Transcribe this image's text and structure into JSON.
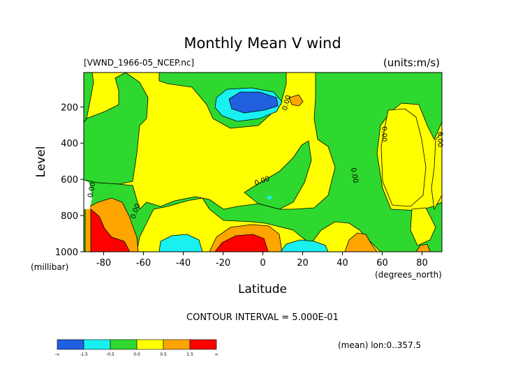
{
  "chart_data": {
    "type": "heatmap",
    "title": "Monthly Mean V wind",
    "dataset_label": "[VWND_1966-05_NCEP.nc]",
    "units_label": "(units:m/s)",
    "ylabel": "Level",
    "ylabel_units": "(millibar)",
    "xlabel": "Latitude",
    "xlabel_units": "(degrees_north)",
    "x_ticks": [
      -80,
      -60,
      -40,
      -20,
      0,
      20,
      40,
      60,
      80
    ],
    "x_tick_labels": [
      "-80",
      "-60",
      "-40",
      "-20",
      "0",
      "20",
      "40",
      "60",
      "80"
    ],
    "xlim": [
      -90,
      90
    ],
    "y_ticks": [
      200,
      400,
      600,
      800,
      1000
    ],
    "y_tick_labels": [
      "200",
      "400",
      "600",
      "800",
      "1000"
    ],
    "ylim": [
      1000,
      10
    ],
    "contour_interval_text": "CONTOUR INTERVAL = 5.000E-01",
    "footer_note": "(mean) lon:0..357.5",
    "contour_labels": [
      {
        "text": "0.00",
        "lat": -85,
        "level": 660,
        "angle": -80
      },
      {
        "text": "0.00",
        "lat": -63,
        "level": 780,
        "angle": -70
      },
      {
        "text": "0.00",
        "lat": 13,
        "level": 180,
        "angle": -75
      },
      {
        "text": "0.00",
        "lat": 0,
        "level": 620,
        "angle": -20
      },
      {
        "text": "0.00",
        "lat": 45,
        "level": 580,
        "angle": 80
      },
      {
        "text": "0.00",
        "lat": 60,
        "level": 350,
        "angle": 90
      },
      {
        "text": "0.00",
        "lat": 88,
        "level": 380,
        "angle": 90
      }
    ],
    "colorbar": {
      "colors": [
        "#1f5fe0",
        "#19f0f0",
        "#2ed82e",
        "#ffff00",
        "#ffa500",
        "#ff0000"
      ],
      "labels": [
        "-∞",
        "-1.5",
        "-0.5",
        "0.0",
        "0.5",
        "1.5",
        "∞"
      ]
    },
    "regions": [
      {
        "level_band": "green",
        "lat": [
          -90,
          -88
        ],
        "level": [
          60,
          200
        ]
      },
      {
        "level_band": "green",
        "lat": [
          -60,
          -47
        ],
        "level": [
          60,
          300
        ]
      },
      {
        "level_band": "green",
        "lat": [
          -28,
          12
        ],
        "level": [
          60,
          290
        ]
      },
      {
        "level_band": "cyan",
        "lat": [
          -24,
          11
        ],
        "level": [
          100,
          240
        ]
      },
      {
        "level_band": "blue",
        "lat": [
          -17,
          5
        ],
        "level": [
          120,
          210
        ]
      },
      {
        "level_band": "orange",
        "lat": [
          14,
          20
        ],
        "level": [
          140,
          200
        ]
      },
      {
        "level_band": "green",
        "lat": [
          25,
          87
        ],
        "level": [
          80,
          1000
        ]
      },
      {
        "level_band": "orange",
        "lat": [
          -88,
          -58
        ],
        "level": [
          760,
          1000
        ]
      },
      {
        "level_band": "red",
        "lat": [
          -88,
          -62
        ],
        "level": [
          820,
          1000
        ]
      },
      {
        "level_band": "cyan",
        "lat": [
          -53,
          -32
        ],
        "level": [
          880,
          1000
        ]
      },
      {
        "level_band": "orange",
        "lat": [
          -27,
          17
        ],
        "level": [
          860,
          1000
        ]
      },
      {
        "level_band": "red",
        "lat": [
          -24,
          -3
        ],
        "level": [
          910,
          1000
        ]
      },
      {
        "level_band": "cyan",
        "lat": [
          18,
          32
        ],
        "level": [
          930,
          1000
        ]
      },
      {
        "level_band": "orange",
        "lat": [
          40,
          56
        ],
        "level": [
          890,
          1000
        ]
      },
      {
        "level_band": "orange",
        "lat": [
          80,
          89
        ],
        "level": [
          940,
          1000
        ]
      }
    ]
  }
}
